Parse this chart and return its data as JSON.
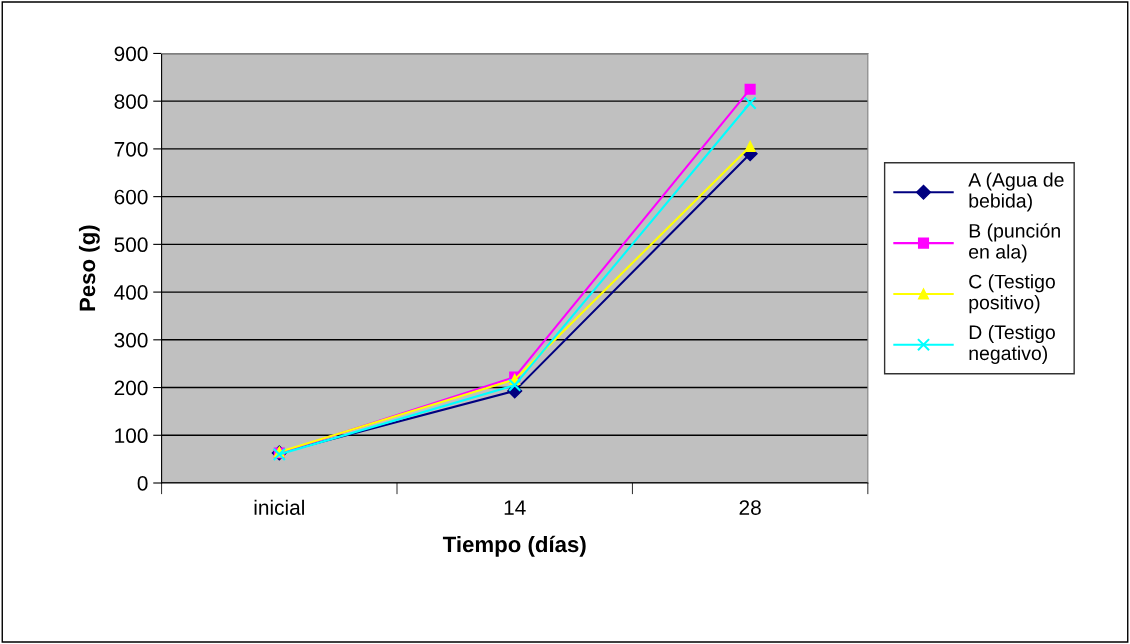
{
  "chart_data": {
    "type": "line",
    "xlabel": "Tiempo (días)",
    "ylabel": "Peso (g)",
    "categories": [
      "inicial",
      "14",
      "28"
    ],
    "series": [
      {
        "name": "A (Agua de bebida)",
        "color": "#000080",
        "marker": "diamond",
        "values": [
          63,
          193,
          690
        ]
      },
      {
        "name": "B (punción en ala)",
        "color": "#ff00ff",
        "marker": "square",
        "values": [
          63,
          222,
          825
        ]
      },
      {
        "name": "C (Testigo positivo)",
        "color": "#ffff00",
        "marker": "triangle",
        "values": [
          65,
          217,
          705
        ]
      },
      {
        "name": "D (Testigo negativo)",
        "color": "#00ffff",
        "marker": "cross",
        "values": [
          60,
          205,
          796
        ]
      }
    ],
    "ylim": [
      0,
      900
    ],
    "yticks": [
      0,
      100,
      200,
      300,
      400,
      500,
      600,
      700,
      800,
      900
    ],
    "grid": "y",
    "legend": "right",
    "line_style": "solid"
  }
}
